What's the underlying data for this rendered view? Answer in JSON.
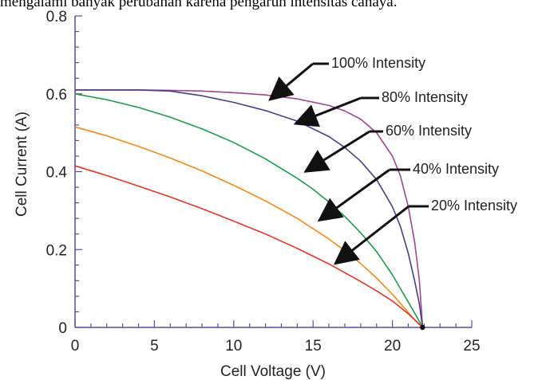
{
  "caption": "mengalami banyak perubahan karena pengaruh intensitas cahaya.",
  "chart_data": {
    "type": "line",
    "xlabel": "Cell Voltage (V)",
    "ylabel": "Cell Current (A)",
    "xlim": [
      0,
      25
    ],
    "ylim": [
      0,
      0.8
    ],
    "x_ticks": [
      "0",
      "5",
      "10",
      "15",
      "20",
      "25"
    ],
    "y_ticks": [
      "0",
      "0.2",
      "0.4",
      "0.6",
      "0.8"
    ],
    "grid": false,
    "series": [
      {
        "name": "100% Intensity",
        "color": "#a0458f",
        "x": [
          0,
          2,
          4,
          6,
          8,
          10,
          12,
          14,
          16,
          17,
          18,
          19,
          20,
          20.5,
          21,
          21.4,
          21.7,
          21.9
        ],
        "y": [
          0.61,
          0.61,
          0.61,
          0.609,
          0.607,
          0.603,
          0.597,
          0.587,
          0.57,
          0.556,
          0.535,
          0.5,
          0.44,
          0.39,
          0.31,
          0.22,
          0.12,
          0.0
        ]
      },
      {
        "name": "80% Intensity",
        "color": "#4b3d8c",
        "x": [
          0,
          2,
          4,
          6,
          8,
          10,
          12,
          14,
          16,
          17,
          18,
          19,
          20,
          20.5,
          21,
          21.4,
          21.7,
          21.9
        ],
        "y": [
          0.61,
          0.61,
          0.61,
          0.607,
          0.595,
          0.578,
          0.557,
          0.53,
          0.49,
          0.462,
          0.427,
          0.38,
          0.31,
          0.26,
          0.19,
          0.12,
          0.06,
          0.0
        ]
      },
      {
        "name": "60% Intensity",
        "color": "#1f9a4a",
        "x": [
          0,
          2,
          4,
          6,
          8,
          10,
          12,
          14,
          15,
          16,
          17,
          18,
          19,
          20,
          20.5,
          21,
          21.5,
          21.9
        ],
        "y": [
          0.6,
          0.585,
          0.565,
          0.54,
          0.51,
          0.475,
          0.433,
          0.383,
          0.355,
          0.322,
          0.285,
          0.243,
          0.195,
          0.135,
          0.1,
          0.065,
          0.03,
          0.0
        ]
      },
      {
        "name": "40% Intensity",
        "color": "#f08a1c",
        "x": [
          0,
          2,
          4,
          6,
          8,
          10,
          12,
          14,
          16,
          17,
          18,
          19,
          20,
          20.5,
          21,
          21.5,
          21.9
        ],
        "y": [
          0.515,
          0.492,
          0.465,
          0.435,
          0.402,
          0.365,
          0.325,
          0.28,
          0.227,
          0.197,
          0.164,
          0.127,
          0.085,
          0.062,
          0.038,
          0.015,
          0.0
        ]
      },
      {
        "name": "20% Intensity",
        "color": "#e0352b",
        "x": [
          0,
          2,
          4,
          6,
          8,
          10,
          12,
          14,
          16,
          18,
          19,
          20,
          21,
          21.5,
          21.9
        ],
        "y": [
          0.415,
          0.39,
          0.363,
          0.335,
          0.305,
          0.273,
          0.24,
          0.203,
          0.163,
          0.118,
          0.094,
          0.068,
          0.035,
          0.016,
          0.0
        ]
      }
    ],
    "annotations": [
      {
        "text": "100% Intensity",
        "series": "100% Intensity"
      },
      {
        "text": "80% Intensity",
        "series": "80% Intensity"
      },
      {
        "text": "60% Intensity",
        "series": "60% Intensity"
      },
      {
        "text": "40% Intensity",
        "series": "40% Intensity"
      },
      {
        "text": "20% Intensity",
        "series": "20% Intensity"
      }
    ]
  }
}
